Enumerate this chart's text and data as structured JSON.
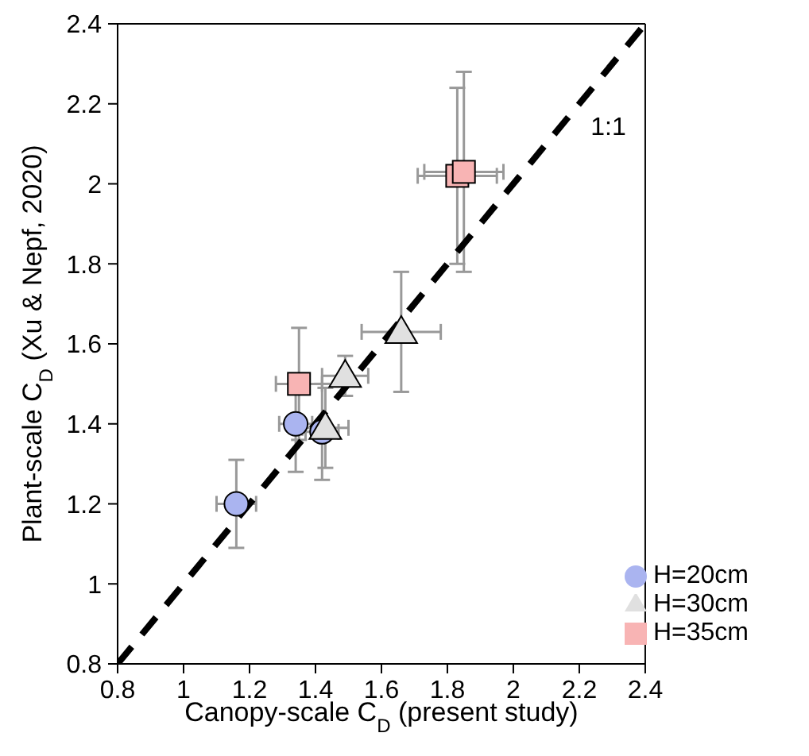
{
  "chart_data": {
    "type": "scatter",
    "xlabel": "Canopy-scale C$_{D}$ (present study)",
    "ylabel": "Plant-scale C$_{D}$ (Xu & Nepf, 2020)",
    "xlim": [
      0.8,
      2.4
    ],
    "ylim": [
      0.8,
      2.4
    ],
    "xticks": [
      0.8,
      1,
      1.2,
      1.4,
      1.6,
      1.8,
      2,
      2.2,
      2.4
    ],
    "yticks": [
      0.8,
      1,
      1.2,
      1.4,
      1.6,
      1.8,
      2,
      2.2,
      2.4
    ],
    "legend": "bottom right",
    "annotations": [
      "1:1"
    ],
    "series": [
      {
        "name": "H=20cm",
        "color": "#aab4f0",
        "marker": "circle",
        "x": [
          1.16,
          1.34,
          1.42
        ],
        "values": [
          1.2,
          1.4,
          1.38
        ],
        "xerrors": [
          0.06,
          0.05,
          0.05
        ],
        "errors": [
          0.11,
          0.12,
          0.12
        ]
      },
      {
        "name": "H=30cm",
        "color": "#e0e0e0",
        "marker": "triangle",
        "x": [
          1.43,
          1.49,
          1.66
        ],
        "values": [
          1.39,
          1.52,
          1.63
        ],
        "xerrors": [
          0.07,
          0.07,
          0.12
        ],
        "errors": [
          0.1,
          0.05,
          0.15
        ]
      },
      {
        "name": "H=35cm",
        "color": "#f8b4b4",
        "marker": "square",
        "x": [
          1.35,
          1.83,
          1.85
        ],
        "values": [
          1.5,
          2.02,
          2.03
        ],
        "xerrors": [
          0.07,
          0.12,
          0.12
        ],
        "errors": [
          0.14,
          0.22,
          0.25
        ]
      },
      {
        "type": "line",
        "color": "#000000",
        "line_style": "dashed",
        "marker": "none",
        "x": [
          0.8,
          2.4
        ],
        "values": [
          0.8,
          2.4
        ]
      }
    ]
  }
}
